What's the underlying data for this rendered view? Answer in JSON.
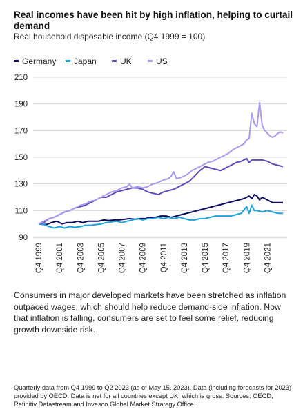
{
  "header": {
    "title": "Real incomes have been hit by high inflation, helping to curtail demand",
    "subtitle": "Real household disposable income (Q4 1999 = 100)"
  },
  "body_text": "Consumers in major developed markets have been stretched as inflation outpaced wages, which should help reduce demand-side inflation. Now that inflation is falling, consumers are set to feel some relief, reducing growth downside risk.",
  "footnote": "Quarterly data from Q4 1999 to Q2 2023 (as of May 15, 2023). Data (including forecasts for 2023) provided by OECD. Data is net for all countries except UK, which is gross. Sources: OECD, Refinitiv Datastream and Invesco Global Market Strategy Office.",
  "chart_data": {
    "type": "line",
    "ylim": [
      90,
      210
    ],
    "yticks": [
      90,
      110,
      130,
      150,
      170,
      190,
      210
    ],
    "grid": "horizontal",
    "legend_position": "top-left",
    "x_start_year": 1999.75,
    "x_end_year": 2023.25,
    "xticks": [
      {
        "label": "Q4 1999",
        "year": 1999.75
      },
      {
        "label": "Q4 2001",
        "year": 2001.75
      },
      {
        "label": "Q4 2003",
        "year": 2003.75
      },
      {
        "label": "Q4 2005",
        "year": 2005.75
      },
      {
        "label": "Q4 2007",
        "year": 2007.75
      },
      {
        "label": "Q4 2009",
        "year": 2009.75
      },
      {
        "label": "Q4 2011",
        "year": 2011.75
      },
      {
        "label": "Q4 2013",
        "year": 2013.75
      },
      {
        "label": "Q4 2015",
        "year": 2015.75
      },
      {
        "label": "Q4 2017",
        "year": 2017.75
      },
      {
        "label": "Q4 2019",
        "year": 2019.75
      },
      {
        "label": "Q4 2021",
        "year": 2021.75
      }
    ],
    "series": [
      {
        "name": "Germany",
        "color": "#0a0a5e",
        "points": [
          [
            1999.75,
            100
          ],
          [
            2000.5,
            99.5
          ],
          [
            2001,
            101
          ],
          [
            2001.5,
            102
          ],
          [
            2002,
            100
          ],
          [
            2002.5,
            101
          ],
          [
            2003,
            101
          ],
          [
            2003.5,
            102
          ],
          [
            2004,
            101
          ],
          [
            2004.5,
            102
          ],
          [
            2005,
            102
          ],
          [
            2005.5,
            102
          ],
          [
            2006,
            103
          ],
          [
            2006.5,
            102.5
          ],
          [
            2007,
            103
          ],
          [
            2007.5,
            103
          ],
          [
            2008,
            103.5
          ],
          [
            2008.5,
            104
          ],
          [
            2009,
            103.5
          ],
          [
            2009.5,
            104
          ],
          [
            2010,
            104
          ],
          [
            2010.5,
            105
          ],
          [
            2011,
            105
          ],
          [
            2011.5,
            106
          ],
          [
            2012,
            106
          ],
          [
            2012.5,
            105
          ],
          [
            2013,
            106
          ],
          [
            2013.5,
            107
          ],
          [
            2014,
            108
          ],
          [
            2014.5,
            109
          ],
          [
            2015,
            110
          ],
          [
            2015.5,
            111
          ],
          [
            2016,
            112
          ],
          [
            2016.5,
            113
          ],
          [
            2017,
            114
          ],
          [
            2017.5,
            115
          ],
          [
            2018,
            116
          ],
          [
            2018.5,
            117
          ],
          [
            2019,
            118
          ],
          [
            2019.5,
            119
          ],
          [
            2019.75,
            120
          ],
          [
            2020,
            121
          ],
          [
            2020.25,
            119
          ],
          [
            2020.5,
            122
          ],
          [
            2020.75,
            121
          ],
          [
            2021,
            118
          ],
          [
            2021.25,
            120
          ],
          [
            2021.5,
            119
          ],
          [
            2021.75,
            118
          ],
          [
            2022,
            117
          ],
          [
            2022.25,
            116
          ],
          [
            2022.5,
            116
          ],
          [
            2022.75,
            116
          ],
          [
            2023.25,
            116
          ]
        ]
      },
      {
        "name": "Japan",
        "color": "#1fa3dc",
        "points": [
          [
            1999.75,
            100
          ],
          [
            2000.25,
            99.5
          ],
          [
            2000.75,
            98
          ],
          [
            2001.25,
            97
          ],
          [
            2001.75,
            98
          ],
          [
            2002.25,
            97
          ],
          [
            2002.75,
            98
          ],
          [
            2003.25,
            97.5
          ],
          [
            2003.75,
            98
          ],
          [
            2004.25,
            99
          ],
          [
            2004.75,
            99
          ],
          [
            2005.25,
            99.5
          ],
          [
            2005.75,
            100
          ],
          [
            2006.25,
            101
          ],
          [
            2006.75,
            101.5
          ],
          [
            2007.25,
            102
          ],
          [
            2007.75,
            101
          ],
          [
            2008.25,
            102
          ],
          [
            2008.75,
            103
          ],
          [
            2009.25,
            104
          ],
          [
            2009.75,
            103
          ],
          [
            2010.25,
            104
          ],
          [
            2010.75,
            104
          ],
          [
            2011.25,
            105
          ],
          [
            2011.75,
            104
          ],
          [
            2012.25,
            105
          ],
          [
            2012.75,
            104
          ],
          [
            2013.25,
            105
          ],
          [
            2013.75,
            104
          ],
          [
            2014.25,
            103
          ],
          [
            2014.75,
            103
          ],
          [
            2015.25,
            104
          ],
          [
            2015.75,
            104
          ],
          [
            2016.25,
            105
          ],
          [
            2016.75,
            106
          ],
          [
            2017.25,
            106
          ],
          [
            2017.75,
            106
          ],
          [
            2018.25,
            106
          ],
          [
            2018.75,
            107
          ],
          [
            2019.25,
            108
          ],
          [
            2019.75,
            113
          ],
          [
            2020,
            108
          ],
          [
            2020.25,
            114
          ],
          [
            2020.5,
            110
          ],
          [
            2020.75,
            110
          ],
          [
            2021.25,
            109
          ],
          [
            2021.75,
            110
          ],
          [
            2022.25,
            109
          ],
          [
            2022.75,
            108
          ],
          [
            2023.25,
            108
          ]
        ]
      },
      {
        "name": "UK",
        "color": "#5b4cb6",
        "points": [
          [
            1999.75,
            100
          ],
          [
            2000.25,
            101
          ],
          [
            2000.75,
            104
          ],
          [
            2001.25,
            105
          ],
          [
            2001.75,
            107
          ],
          [
            2002.25,
            109
          ],
          [
            2002.75,
            110
          ],
          [
            2003.25,
            112
          ],
          [
            2003.75,
            113
          ],
          [
            2004.25,
            114
          ],
          [
            2004.75,
            116
          ],
          [
            2005.25,
            118
          ],
          [
            2005.75,
            120
          ],
          [
            2006.25,
            120
          ],
          [
            2006.75,
            122
          ],
          [
            2007.25,
            124
          ],
          [
            2007.75,
            125
          ],
          [
            2008.25,
            126
          ],
          [
            2008.75,
            127
          ],
          [
            2009.25,
            127
          ],
          [
            2009.75,
            126
          ],
          [
            2010.25,
            124
          ],
          [
            2010.75,
            123
          ],
          [
            2011.25,
            122
          ],
          [
            2011.75,
            124
          ],
          [
            2012.25,
            125
          ],
          [
            2012.75,
            126
          ],
          [
            2013.25,
            128
          ],
          [
            2013.75,
            130
          ],
          [
            2014.25,
            132
          ],
          [
            2014.75,
            136
          ],
          [
            2015.25,
            140
          ],
          [
            2015.75,
            143
          ],
          [
            2016.25,
            142
          ],
          [
            2016.75,
            141
          ],
          [
            2017.25,
            140
          ],
          [
            2017.75,
            142
          ],
          [
            2018.25,
            144
          ],
          [
            2018.75,
            146
          ],
          [
            2019.25,
            147
          ],
          [
            2019.75,
            149
          ],
          [
            2020,
            146
          ],
          [
            2020.25,
            148
          ],
          [
            2020.75,
            148
          ],
          [
            2021.25,
            148
          ],
          [
            2021.75,
            147
          ],
          [
            2022.25,
            145
          ],
          [
            2022.75,
            144
          ],
          [
            2023.25,
            143
          ]
        ]
      },
      {
        "name": "US",
        "color": "#a99af0",
        "points": [
          [
            1999.75,
            100
          ],
          [
            2000.25,
            102
          ],
          [
            2000.75,
            104
          ],
          [
            2001.25,
            105
          ],
          [
            2001.75,
            107
          ],
          [
            2002.25,
            109
          ],
          [
            2002.75,
            110
          ],
          [
            2003.25,
            112
          ],
          [
            2003.75,
            114
          ],
          [
            2004.25,
            115
          ],
          [
            2004.75,
            117
          ],
          [
            2005.25,
            118
          ],
          [
            2005.75,
            120
          ],
          [
            2006.25,
            122
          ],
          [
            2006.75,
            124
          ],
          [
            2007.25,
            125
          ],
          [
            2007.75,
            127
          ],
          [
            2008.25,
            128
          ],
          [
            2008.5,
            130
          ],
          [
            2008.75,
            127
          ],
          [
            2009.25,
            128
          ],
          [
            2009.75,
            127
          ],
          [
            2010.25,
            128
          ],
          [
            2010.75,
            130
          ],
          [
            2011.25,
            131
          ],
          [
            2011.75,
            133
          ],
          [
            2012.25,
            134
          ],
          [
            2012.5,
            136
          ],
          [
            2012.75,
            139
          ],
          [
            2013,
            134
          ],
          [
            2013.5,
            135
          ],
          [
            2014,
            137
          ],
          [
            2014.5,
            140
          ],
          [
            2015,
            142
          ],
          [
            2015.5,
            144
          ],
          [
            2016,
            146
          ],
          [
            2016.5,
            147
          ],
          [
            2017,
            149
          ],
          [
            2017.5,
            151
          ],
          [
            2018,
            153
          ],
          [
            2018.5,
            156
          ],
          [
            2019,
            158
          ],
          [
            2019.5,
            160
          ],
          [
            2019.75,
            163
          ],
          [
            2020,
            164
          ],
          [
            2020.25,
            183
          ],
          [
            2020.5,
            175
          ],
          [
            2020.75,
            173
          ],
          [
            2021,
            191
          ],
          [
            2021.25,
            174
          ],
          [
            2021.5,
            170
          ],
          [
            2021.75,
            168
          ],
          [
            2022,
            166
          ],
          [
            2022.25,
            165
          ],
          [
            2022.5,
            166
          ],
          [
            2022.75,
            168
          ],
          [
            2023,
            169
          ],
          [
            2023.25,
            168
          ]
        ]
      }
    ]
  }
}
